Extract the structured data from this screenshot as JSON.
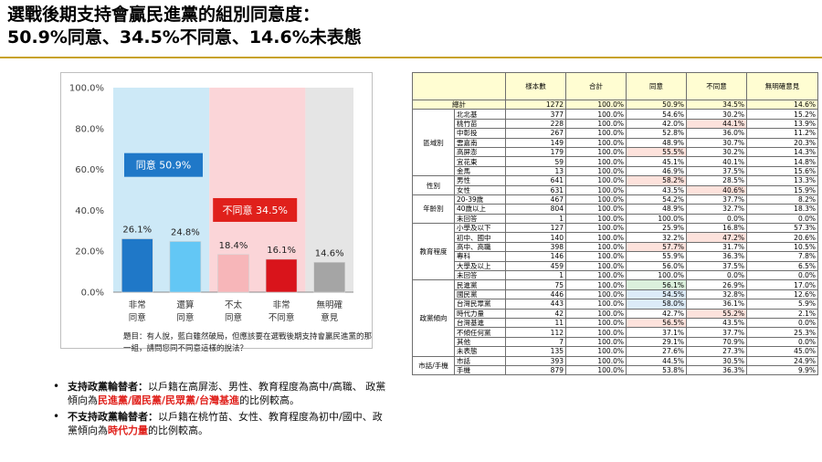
{
  "title": {
    "line1": "選戰後期支持會贏民進黨的組別同意度：",
    "line2": "50.9%同意、34.5%不同意、14.6%未表態"
  },
  "colors": {
    "agree_bg": "#cde9f7",
    "disagree_bg": "#fbd5d8",
    "nodata_bg": "#e5e5e5",
    "bar_strong_agree": "#1f78c8",
    "bar_agree": "#63c7f5",
    "bar_disagree": "#f7b6b9",
    "bar_strong_disagree": "#d9141b",
    "bar_no_opinion": "#a5a5a5",
    "label_agree": "#1f78c8",
    "label_disagree": "#e0201b",
    "accent_rule": "#c8a227"
  },
  "chart_data": {
    "type": "bar",
    "categories": [
      "非常\n同意",
      "還算\n同意",
      "不太\n同意",
      "非常\n不同意",
      "無明確\n意見"
    ],
    "values": [
      26.1,
      24.8,
      18.4,
      16.1,
      14.6
    ],
    "value_labels": [
      "26.1%",
      "24.8%",
      "18.4%",
      "16.1%",
      "14.6%"
    ],
    "ylim": [
      0,
      100
    ],
    "yticks": [
      "0.0%",
      "20.0%",
      "40.0%",
      "60.0%",
      "80.0%",
      "100.0%"
    ],
    "ytick_values": [
      0,
      20,
      40,
      60,
      80,
      100
    ],
    "annotations": [
      {
        "text": "同意 50.9%",
        "group": "agree"
      },
      {
        "text": "不同意 34.5%",
        "group": "disagree"
      }
    ],
    "grid": false,
    "note": "題目：有人說，藍白雖然破局，但應該要在選戰後期支持會贏民進黨的那一組，請問您同不同意這樣的說法？"
  },
  "bullets": [
    {
      "head": "支持政黨輪替者：",
      "text1": "以戶籍在高屏澎、男性、教育程度為高中/高職、 政黨傾向為",
      "red": "民進黨/國民黨/民眾黨/台灣基進",
      "text2": "的比例較高。"
    },
    {
      "head": "不支持政黨輪替者：",
      "text1": "以戶籍在桃竹苗、女性、教育程度為初中/國中、政黨傾向為",
      "red": "時代力量",
      "text2": "的比例較高。"
    }
  ],
  "table": {
    "headers": [
      "樣本數",
      "合計",
      "同意",
      "不同意",
      "無明確意見"
    ],
    "total": {
      "label": "總計",
      "values": [
        "1272",
        "100.0%",
        "50.9%",
        "34.5%",
        "14.6%"
      ]
    },
    "groups": [
      {
        "name": "區域別",
        "rows": [
          {
            "label": "北北基",
            "values": [
              "377",
              "100.0%",
              "54.6%",
              "30.2%",
              "15.2%"
            ],
            "hl": [
              null,
              null,
              null,
              null,
              null
            ]
          },
          {
            "label": "桃竹苗",
            "values": [
              "228",
              "100.0%",
              "42.0%",
              "44.1%",
              "13.9%"
            ],
            "hl": [
              null,
              null,
              null,
              "pink",
              null
            ]
          },
          {
            "label": "中彰投",
            "values": [
              "267",
              "100.0%",
              "52.8%",
              "36.0%",
              "11.2%"
            ],
            "hl": [
              null,
              null,
              null,
              null,
              null
            ]
          },
          {
            "label": "雲嘉南",
            "values": [
              "149",
              "100.0%",
              "48.9%",
              "30.7%",
              "20.3%"
            ],
            "hl": [
              null,
              null,
              null,
              null,
              null
            ]
          },
          {
            "label": "高屏澎",
            "values": [
              "179",
              "100.0%",
              "55.5%",
              "30.2%",
              "14.3%"
            ],
            "hl": [
              null,
              null,
              "pink",
              null,
              null
            ]
          },
          {
            "label": "宜花東",
            "values": [
              "59",
              "100.0%",
              "45.1%",
              "40.1%",
              "14.8%"
            ],
            "hl": [
              null,
              null,
              null,
              null,
              null
            ]
          },
          {
            "label": "金馬",
            "values": [
              "13",
              "100.0%",
              "46.9%",
              "37.5%",
              "15.6%"
            ],
            "hl": [
              null,
              null,
              null,
              null,
              null
            ]
          }
        ]
      },
      {
        "name": "性別",
        "rows": [
          {
            "label": "男性",
            "values": [
              "641",
              "100.0%",
              "58.2%",
              "28.5%",
              "13.3%"
            ],
            "hl": [
              null,
              null,
              "pink",
              null,
              null
            ]
          },
          {
            "label": "女性",
            "values": [
              "631",
              "100.0%",
              "43.5%",
              "40.6%",
              "15.9%"
            ],
            "hl": [
              null,
              null,
              null,
              "pink",
              null
            ]
          }
        ]
      },
      {
        "name": "年齡別",
        "rows": [
          {
            "label": "20-39歲",
            "values": [
              "467",
              "100.0%",
              "54.2%",
              "37.7%",
              "8.2%"
            ],
            "hl": [
              null,
              null,
              null,
              null,
              null
            ]
          },
          {
            "label": "40歲以上",
            "values": [
              "804",
              "100.0%",
              "48.9%",
              "32.7%",
              "18.3%"
            ],
            "hl": [
              null,
              null,
              null,
              null,
              null
            ]
          },
          {
            "label": "未回答",
            "values": [
              "1",
              "100.0%",
              "100.0%",
              "0.0%",
              "0.0%"
            ],
            "hl": [
              null,
              null,
              null,
              null,
              null
            ]
          }
        ]
      },
      {
        "name": "教育程度",
        "rows": [
          {
            "label": "小學及以下",
            "values": [
              "127",
              "100.0%",
              "25.9%",
              "16.8%",
              "57.3%"
            ],
            "hl": [
              null,
              null,
              null,
              null,
              null
            ]
          },
          {
            "label": "初中、國中",
            "values": [
              "140",
              "100.0%",
              "32.2%",
              "47.2%",
              "20.6%"
            ],
            "hl": [
              null,
              null,
              null,
              "pink",
              null
            ]
          },
          {
            "label": "高中、高職",
            "values": [
              "398",
              "100.0%",
              "57.7%",
              "31.7%",
              "10.5%"
            ],
            "hl": [
              null,
              null,
              "pink",
              null,
              null
            ]
          },
          {
            "label": "專科",
            "values": [
              "146",
              "100.0%",
              "55.9%",
              "36.3%",
              "7.8%"
            ],
            "hl": [
              null,
              null,
              null,
              null,
              null
            ]
          },
          {
            "label": "大學及以上",
            "values": [
              "459",
              "100.0%",
              "56.0%",
              "37.5%",
              "6.5%"
            ],
            "hl": [
              null,
              null,
              null,
              null,
              null
            ]
          },
          {
            "label": "未回答",
            "values": [
              "1",
              "100.0%",
              "100.0%",
              "0.0%",
              "0.0%"
            ],
            "hl": [
              null,
              null,
              null,
              null,
              null
            ]
          }
        ]
      },
      {
        "name": "政黨傾向",
        "rows": [
          {
            "label": "民進黨",
            "values": [
              "75",
              "100.0%",
              "56.1%",
              "26.9%",
              "17.0%"
            ],
            "hl": [
              null,
              null,
              "green",
              null,
              null
            ]
          },
          {
            "label": "國民黨",
            "values": [
              "446",
              "100.0%",
              "54.5%",
              "32.8%",
              "12.6%"
            ],
            "hl": [
              null,
              null,
              "blue",
              null,
              null
            ]
          },
          {
            "label": "台灣民眾黨",
            "values": [
              "443",
              "100.0%",
              "58.0%",
              "36.1%",
              "5.9%"
            ],
            "hl": [
              null,
              null,
              "blue",
              null,
              null
            ]
          },
          {
            "label": "時代力量",
            "values": [
              "42",
              "100.0%",
              "42.7%",
              "55.2%",
              "2.1%"
            ],
            "hl": [
              null,
              null,
              null,
              "pink",
              null
            ]
          },
          {
            "label": "台灣基進",
            "values": [
              "11",
              "100.0%",
              "56.5%",
              "43.5%",
              "0.0%"
            ],
            "hl": [
              null,
              null,
              "pink",
              null,
              null
            ]
          },
          {
            "label": "不傾任何黨",
            "values": [
              "112",
              "100.0%",
              "37.1%",
              "37.7%",
              "25.3%"
            ],
            "hl": [
              null,
              null,
              null,
              null,
              null
            ]
          },
          {
            "label": "其他",
            "values": [
              "7",
              "100.0%",
              "29.1%",
              "70.9%",
              "0.0%"
            ],
            "hl": [
              null,
              null,
              null,
              null,
              null
            ]
          },
          {
            "label": "未表態",
            "values": [
              "135",
              "100.0%",
              "27.6%",
              "27.3%",
              "45.0%"
            ],
            "hl": [
              null,
              null,
              null,
              null,
              null
            ]
          }
        ]
      },
      {
        "name": "市話/手機",
        "rows": [
          {
            "label": "市話",
            "values": [
              "393",
              "100.0%",
              "44.5%",
              "30.5%",
              "24.9%"
            ],
            "hl": [
              null,
              null,
              null,
              null,
              null
            ]
          },
          {
            "label": "手機",
            "values": [
              "879",
              "100.0%",
              "53.8%",
              "36.3%",
              "9.9%"
            ],
            "hl": [
              null,
              null,
              null,
              null,
              null
            ]
          }
        ]
      }
    ]
  }
}
